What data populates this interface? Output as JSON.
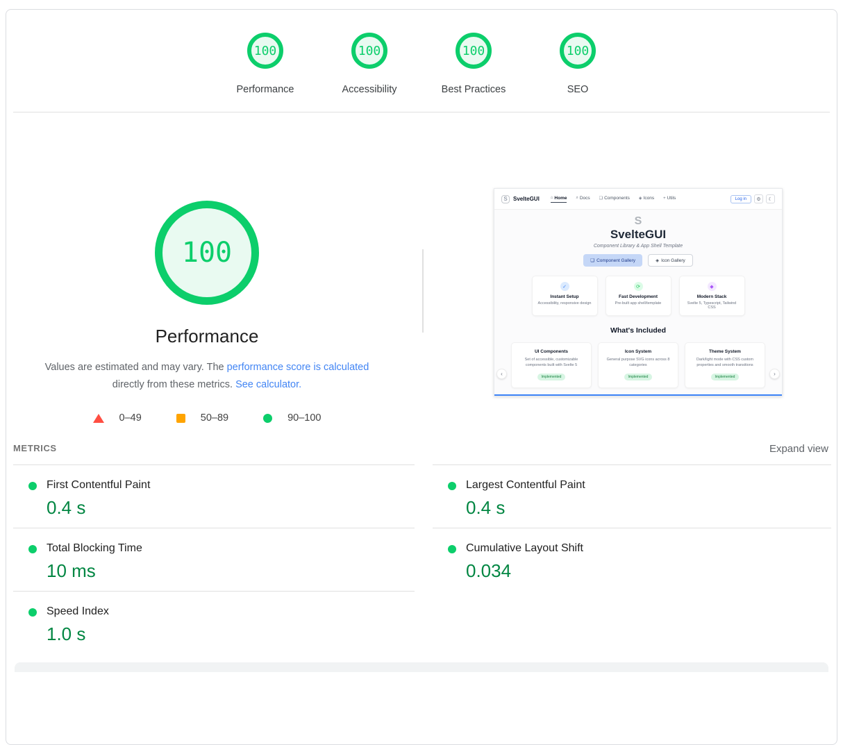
{
  "summary": {
    "gauges": [
      {
        "score": "100",
        "label": "Performance"
      },
      {
        "score": "100",
        "label": "Accessibility"
      },
      {
        "score": "100",
        "label": "Best Practices"
      },
      {
        "score": "100",
        "label": "SEO"
      }
    ]
  },
  "performance_section": {
    "score": "100",
    "title": "Performance",
    "description": {
      "text_1": "Values are estimated and may vary. The ",
      "link_1": "performance score is calculated",
      "text_2": " directly from these metrics. ",
      "link_2": "See calculator."
    },
    "legend": [
      {
        "range": "0–49"
      },
      {
        "range": "50–89"
      },
      {
        "range": "90–100"
      }
    ]
  },
  "metrics": {
    "heading": "METRICS",
    "expand_label": "Expand view",
    "items": [
      {
        "label": "First Contentful Paint",
        "value": "0.4 s"
      },
      {
        "label": "Largest Contentful Paint",
        "value": "0.4 s"
      },
      {
        "label": "Total Blocking Time",
        "value": "10 ms"
      },
      {
        "label": "Cumulative Layout Shift",
        "value": "0.034"
      },
      {
        "label": "Speed Index",
        "value": "1.0 s"
      }
    ]
  },
  "thumbnail": {
    "nav": {
      "brand": "SvelteGUI",
      "items": [
        {
          "label": "Home"
        },
        {
          "label": "Docs"
        },
        {
          "label": "Components"
        },
        {
          "label": "Icons"
        },
        {
          "label": "Utils"
        }
      ],
      "login_label": "Log in"
    },
    "hero": {
      "title": "SvelteGUI",
      "subtitle": "Component Library & App Shell Template",
      "primary_button": "Component Gallery",
      "secondary_button": "Icon Gallery"
    },
    "features": [
      {
        "title": "Instant Setup",
        "desc": "Accessibility, responsive design"
      },
      {
        "title": "Fast Development",
        "desc": "Pre-built app shell/template"
      },
      {
        "title": "Modern Stack",
        "desc": "Svelte 5, Typescript, Tailwind CSS"
      }
    ],
    "included": {
      "heading": "What's Included",
      "cards": [
        {
          "title": "UI Components",
          "desc": "Set of accessible, customizable components built with Svelte 5",
          "badge": "Implemented"
        },
        {
          "title": "Icon System",
          "desc": "General purpose SVG icons across 8 categories",
          "badge": "Implemented"
        },
        {
          "title": "Theme System",
          "desc": "Dark/light mode with CSS custom properties and smooth transitions",
          "badge": "Implemented"
        }
      ]
    }
  },
  "icons": {
    "logo_glyph": "S",
    "home": "⌂",
    "docs": "⌕",
    "components": "❑",
    "icons_nav": "◈",
    "utils": "+",
    "gear": "⚙",
    "moon": "☾",
    "feature_check": "✓",
    "feature_refresh": "⟳",
    "feature_stack": "◆",
    "btn_gallery": "❑",
    "btn_icon": "◈",
    "arrow_left": "‹",
    "arrow_right": "›"
  },
  "colors": {
    "pass_green": "#0cce6b",
    "value_green": "#018642",
    "average_orange": "#ffa400",
    "fail_red": "#ff4e42",
    "link_blue": "#4285f4"
  }
}
